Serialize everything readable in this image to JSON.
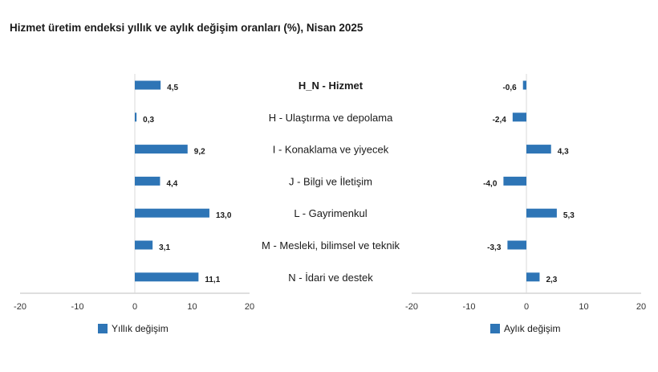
{
  "chart_data": {
    "type": "bar",
    "orientation": "horizontal",
    "title": "Hizmet üretim endeksi yıllık ve aylık değişim oranları (%), Nisan 2025",
    "categories": [
      "H_N - Hizmet",
      "H - Ulaştırma ve depolama",
      "I - Konaklama ve yiyecek",
      "J - Bilgi ve İletişim",
      "L - Gayrimenkul",
      "M - Mesleki, bilimsel ve teknik",
      "N - İdari ve destek"
    ],
    "bold_categories": [
      "H_N - Hizmet"
    ],
    "color": "#2e75b6",
    "panels": [
      {
        "series_name": "Yıllık değişim",
        "values": [
          4.5,
          0.3,
          9.2,
          4.4,
          13.0,
          3.1,
          11.1
        ],
        "value_labels": [
          "4,5",
          "0,3",
          "9,2",
          "4,4",
          "13,0",
          "3,1",
          "11,1"
        ],
        "xlim": [
          -20,
          20
        ],
        "ticks": [
          "-20",
          "-10",
          "0",
          "10",
          "20"
        ],
        "legend_position": "bottom-left"
      },
      {
        "series_name": "Aylık değişim",
        "values": [
          -0.6,
          -2.4,
          4.3,
          -4.0,
          5.3,
          -3.3,
          2.3
        ],
        "value_labels": [
          "-0,6",
          "-2,4",
          "4,3",
          "-4,0",
          "5,3",
          "-3,3",
          "2,3"
        ],
        "xlim": [
          -20,
          20
        ],
        "ticks": [
          "-20",
          "-10",
          "0",
          "10",
          "20"
        ],
        "legend_position": "bottom-left"
      }
    ],
    "grid": false
  }
}
